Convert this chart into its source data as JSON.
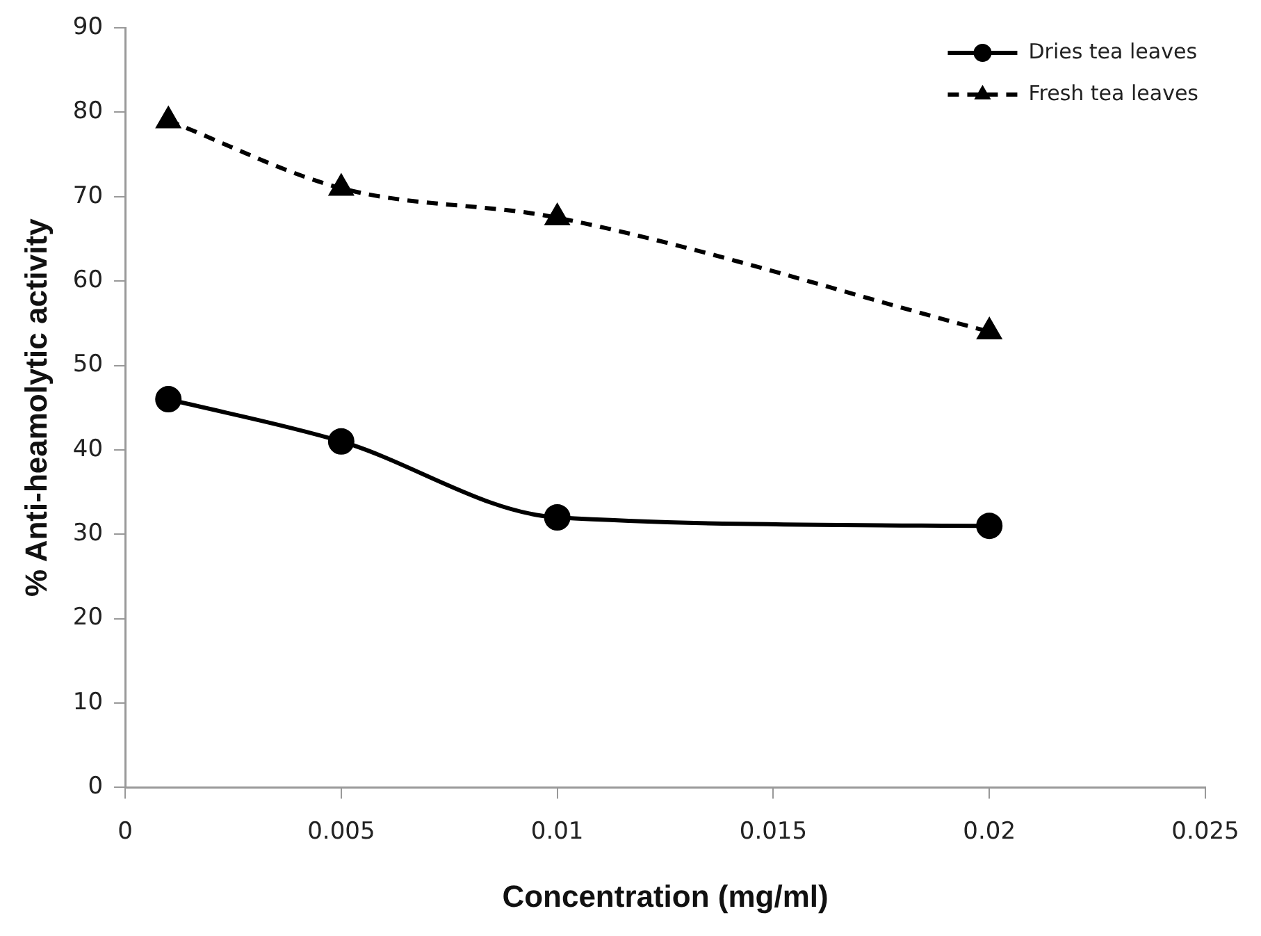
{
  "chart_data": {
    "type": "line",
    "xlabel": "Concentration (mg/ml)",
    "ylabel": "% Anti-heamolytic activity",
    "x": [
      0.001,
      0.005,
      0.01,
      0.02
    ],
    "series": [
      {
        "name": "Dries tea leaves",
        "color": "#000000",
        "values": [
          46,
          41,
          32,
          31
        ],
        "marker": "circle",
        "line_style": "solid"
      },
      {
        "name": "Fresh tea leaves",
        "color": "#000000",
        "values": [
          79,
          71,
          67.5,
          54
        ],
        "marker": "triangle",
        "line_style": "dashed"
      }
    ],
    "xlim": [
      0,
      0.025
    ],
    "xticks": [
      0,
      0.005,
      0.01,
      0.015,
      0.02,
      0.025
    ],
    "ylim": [
      0,
      90
    ],
    "yticks": [
      0,
      10,
      20,
      30,
      40,
      50,
      60,
      70,
      80,
      90
    ],
    "grid": false,
    "legend": "top right"
  }
}
